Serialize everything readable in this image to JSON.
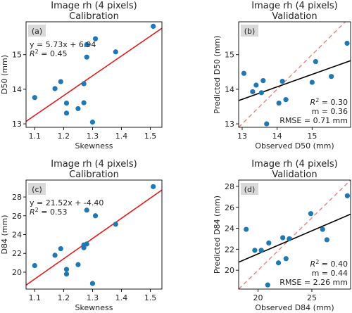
{
  "figure": {
    "background": "#ffffff",
    "point_color": "#1f77b4",
    "calibration_line_color": "#e31a1c",
    "identity_line_color": "#f08080",
    "regression_line_color": "#000000",
    "panel_label_background": "#d9d9d9"
  },
  "chart_data": [
    {
      "id": "a",
      "type": "scatter",
      "title_line1": "Image rh (4 pixels)",
      "title_line2": "Calibration",
      "panel_label": "(a)",
      "xlabel": "Skewness",
      "ylabel": "D50 (mm)",
      "xlim": [
        1.07,
        1.54
      ],
      "ylim": [
        12.9,
        15.95
      ],
      "xticks": [
        1.1,
        1.2,
        1.3,
        1.4,
        1.5
      ],
      "yticks": [
        13,
        14,
        15
      ],
      "x": [
        1.1,
        1.17,
        1.19,
        1.21,
        1.21,
        1.25,
        1.27,
        1.27,
        1.28,
        1.28,
        1.3,
        1.31,
        1.38,
        1.51
      ],
      "y": [
        13.76,
        14.02,
        14.22,
        13.6,
        13.31,
        13.44,
        13.61,
        14.16,
        14.93,
        15.29,
        13.05,
        15.46,
        15.08,
        15.82
      ],
      "fit_line": {
        "type": "linear",
        "slope": 5.73,
        "intercept": 6.94,
        "x_range": [
          1.07,
          1.54
        ]
      },
      "annotations": [
        "y = 5.73x + 6.94",
        "R² = 0.45"
      ],
      "annotation_placement": "top-left"
    },
    {
      "id": "b",
      "type": "scatter",
      "title_line1": "Image rh (4 pixels)",
      "title_line2": "Validation",
      "panel_label": "(b)",
      "xlabel": "Observed D50 (mm)",
      "ylabel": "Predicted D50 (mm)",
      "xlim": [
        12.9,
        16.1
      ],
      "ylim": [
        12.9,
        15.95
      ],
      "xticks": [
        13,
        14,
        15
      ],
      "yticks": [
        13,
        14,
        15
      ],
      "x": [
        13.05,
        13.3,
        13.4,
        13.55,
        13.6,
        13.7,
        14.05,
        14.15,
        14.25,
        15.0,
        15.1,
        15.55,
        16.0
      ],
      "y": [
        14.46,
        13.93,
        14.12,
        13.9,
        14.25,
        13.0,
        13.6,
        14.23,
        13.7,
        14.2,
        14.8,
        14.37,
        15.33
      ],
      "identity_line": true,
      "fit_line": {
        "type": "linear",
        "slope": 0.36,
        "intercept": 9.03,
        "x_range": [
          12.9,
          16.1
        ]
      },
      "annotations": [
        "R² = 0.30",
        "m = 0.36",
        "RMSE = 0.71 mm"
      ],
      "annotation_placement": "bottom-right"
    },
    {
      "id": "c",
      "type": "scatter",
      "title_line1": "Image rh (4 pixels)",
      "title_line2": "Calibration",
      "panel_label": "(c)",
      "xlabel": "Skewness",
      "ylabel": "D84 (mm)",
      "xlim": [
        1.07,
        1.54
      ],
      "ylim": [
        18.2,
        29.8
      ],
      "xticks": [
        1.1,
        1.2,
        1.3,
        1.4,
        1.5
      ],
      "yticks": [
        20,
        22,
        24,
        26,
        28
      ],
      "x": [
        1.1,
        1.17,
        1.19,
        1.21,
        1.21,
        1.25,
        1.27,
        1.27,
        1.28,
        1.28,
        1.3,
        1.31,
        1.38,
        1.51
      ],
      "y": [
        20.7,
        21.8,
        22.5,
        20.3,
        19.8,
        20.8,
        22.9,
        22.6,
        23.0,
        26.6,
        18.8,
        26.0,
        25.1,
        29.1
      ],
      "fit_line": {
        "type": "linear",
        "slope": 21.52,
        "intercept": -4.4,
        "x_range": [
          1.07,
          1.54
        ]
      },
      "annotations": [
        "y = 21.52x + -4.40",
        "R² = 0.53"
      ],
      "annotation_placement": "top-left"
    },
    {
      "id": "d",
      "type": "scatter",
      "title_line1": "Image rh (4 pixels)",
      "title_line2": "Validation",
      "panel_label": "(d)",
      "xlabel": "Observed D84 (mm)",
      "ylabel": "Predicted D84 (mm)",
      "xlim": [
        18.2,
        28.6
      ],
      "ylim": [
        18.2,
        28.6
      ],
      "xticks": [
        20,
        25
      ],
      "yticks": [
        20,
        22,
        24,
        26,
        28
      ],
      "x": [
        18.9,
        19.7,
        20.3,
        20.9,
        21.0,
        21.9,
        22.3,
        22.6,
        22.9,
        24.9,
        26.0,
        26.4,
        28.3
      ],
      "y": [
        23.9,
        21.9,
        21.9,
        18.6,
        22.6,
        20.7,
        23.1,
        21.1,
        23.0,
        25.4,
        23.9,
        22.9,
        27.1
      ],
      "identity_line": true,
      "fit_line": {
        "type": "linear",
        "slope": 0.44,
        "intercept": 12.76,
        "x_range": [
          18.2,
          28.6
        ]
      },
      "annotations": [
        "R² = 0.40",
        "m = 0.44",
        "RMSE = 2.26 mm"
      ],
      "annotation_placement": "bottom-right"
    }
  ]
}
